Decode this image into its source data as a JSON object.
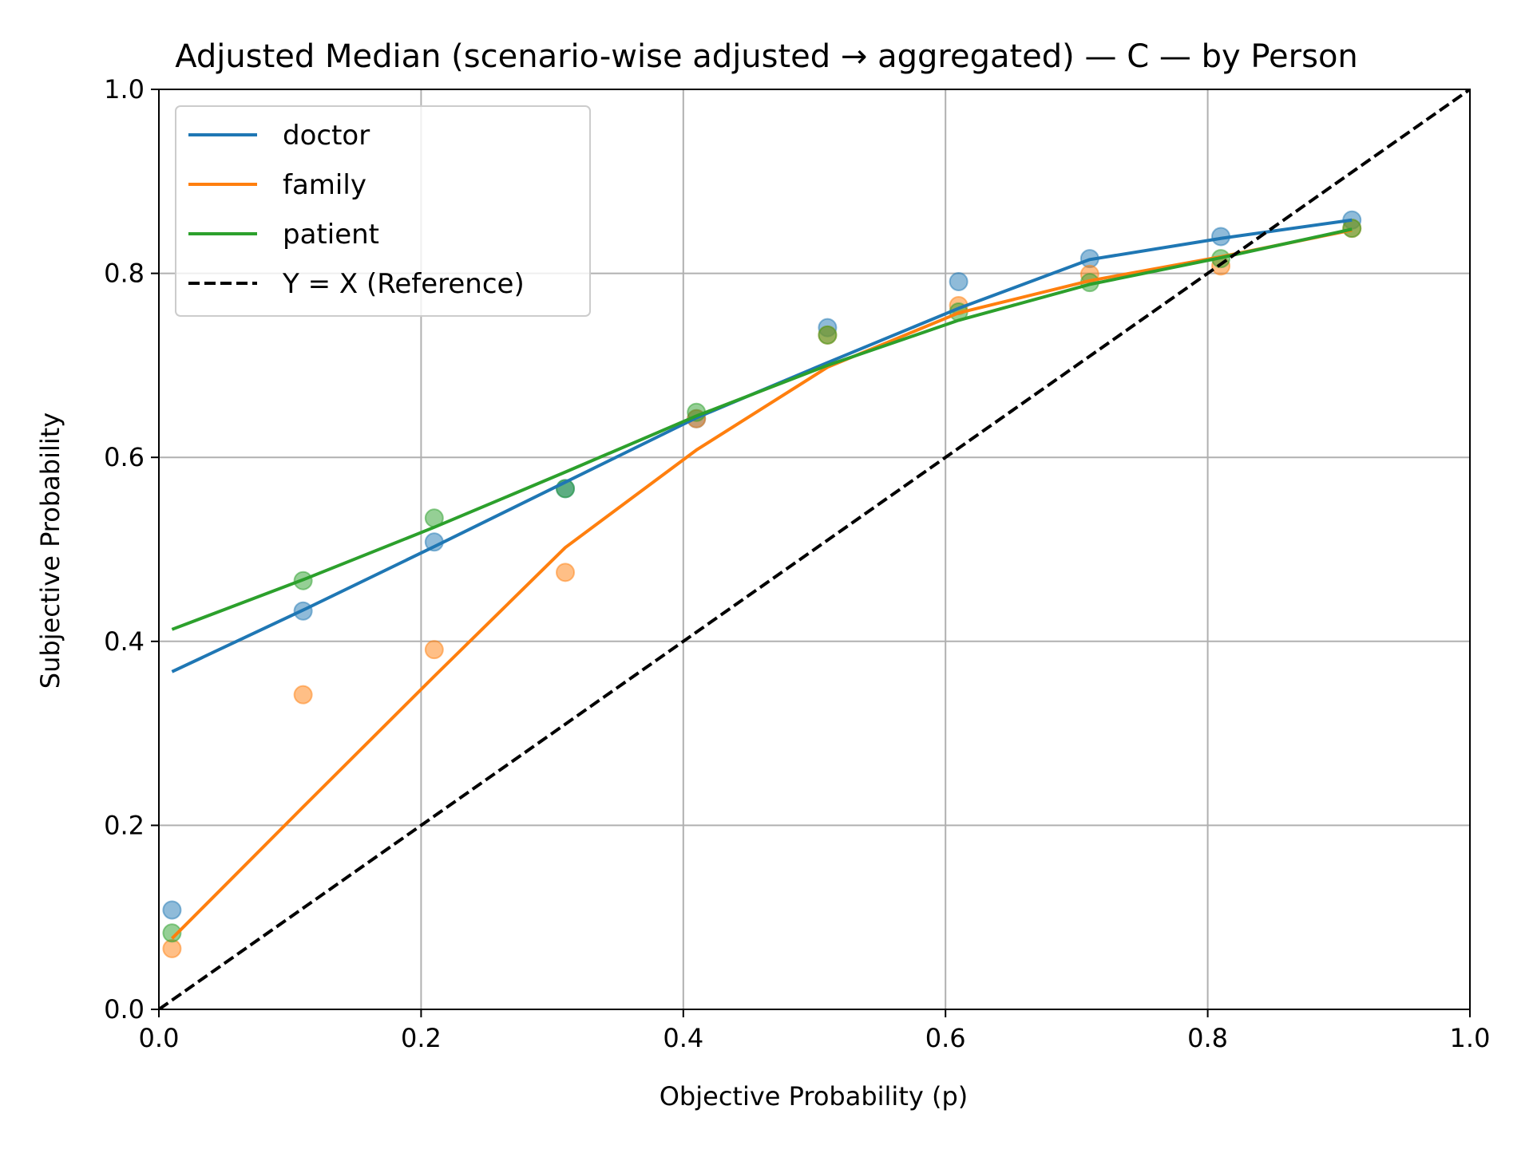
{
  "chart_data": {
    "type": "line",
    "title": "Adjusted Median (scenario-wise adjusted → aggregated) — C — by Person",
    "xlabel": "Objective Probability (p)",
    "ylabel": "Subjective Probability",
    "xlim": [
      0.0,
      1.0
    ],
    "ylim": [
      0.0,
      1.0
    ],
    "x_ticks": [
      "0.0",
      "0.2",
      "0.4",
      "0.6",
      "0.8",
      "1.0"
    ],
    "y_ticks": [
      "0.0",
      "0.2",
      "0.4",
      "0.6",
      "0.8",
      "1.0"
    ],
    "grid": true,
    "legend_position": "top-left",
    "series": [
      {
        "name": "doctor",
        "color": "#1f77b4",
        "points_x": [
          0.01,
          0.11,
          0.21,
          0.31,
          0.41,
          0.51,
          0.61,
          0.71,
          0.81,
          0.91
        ],
        "points_y": [
          0.108,
          0.433,
          0.508,
          0.566,
          0.642,
          0.741,
          0.791,
          0.816,
          0.84,
          0.858
        ],
        "line_x": [
          0.01,
          0.11,
          0.21,
          0.31,
          0.41,
          0.51,
          0.61,
          0.71,
          0.81,
          0.91
        ],
        "line_y": [
          0.367,
          0.434,
          0.503,
          0.573,
          0.643,
          0.703,
          0.762,
          0.815,
          0.838,
          0.858
        ]
      },
      {
        "name": "family",
        "color": "#ff7f0e",
        "points_x": [
          0.01,
          0.11,
          0.21,
          0.31,
          0.41,
          0.51,
          0.61,
          0.71,
          0.81,
          0.91
        ],
        "points_y": [
          0.066,
          0.342,
          0.391,
          0.475,
          0.642,
          0.733,
          0.765,
          0.799,
          0.808,
          0.849
        ],
        "line_x": [
          0.01,
          0.11,
          0.21,
          0.31,
          0.41,
          0.51,
          0.61,
          0.71,
          0.81,
          0.91
        ],
        "line_y": [
          0.077,
          0.22,
          0.362,
          0.502,
          0.608,
          0.698,
          0.757,
          0.792,
          0.818,
          0.847
        ]
      },
      {
        "name": "patient",
        "color": "#2ca02c",
        "points_x": [
          0.01,
          0.11,
          0.21,
          0.31,
          0.41,
          0.51,
          0.61,
          0.71,
          0.81,
          0.91
        ],
        "points_y": [
          0.083,
          0.466,
          0.534,
          0.566,
          0.649,
          0.733,
          0.758,
          0.79,
          0.816,
          0.849
        ],
        "line_x": [
          0.01,
          0.11,
          0.21,
          0.31,
          0.41,
          0.51,
          0.61,
          0.71,
          0.81,
          0.91
        ],
        "line_y": [
          0.413,
          0.467,
          0.524,
          0.584,
          0.645,
          0.7,
          0.749,
          0.788,
          0.817,
          0.848
        ]
      }
    ],
    "reference_line": {
      "name": "Y = X (Reference)",
      "color": "#000000",
      "style": "dashed",
      "x": [
        0.0,
        1.0
      ],
      "y": [
        0.0,
        1.0
      ]
    }
  }
}
